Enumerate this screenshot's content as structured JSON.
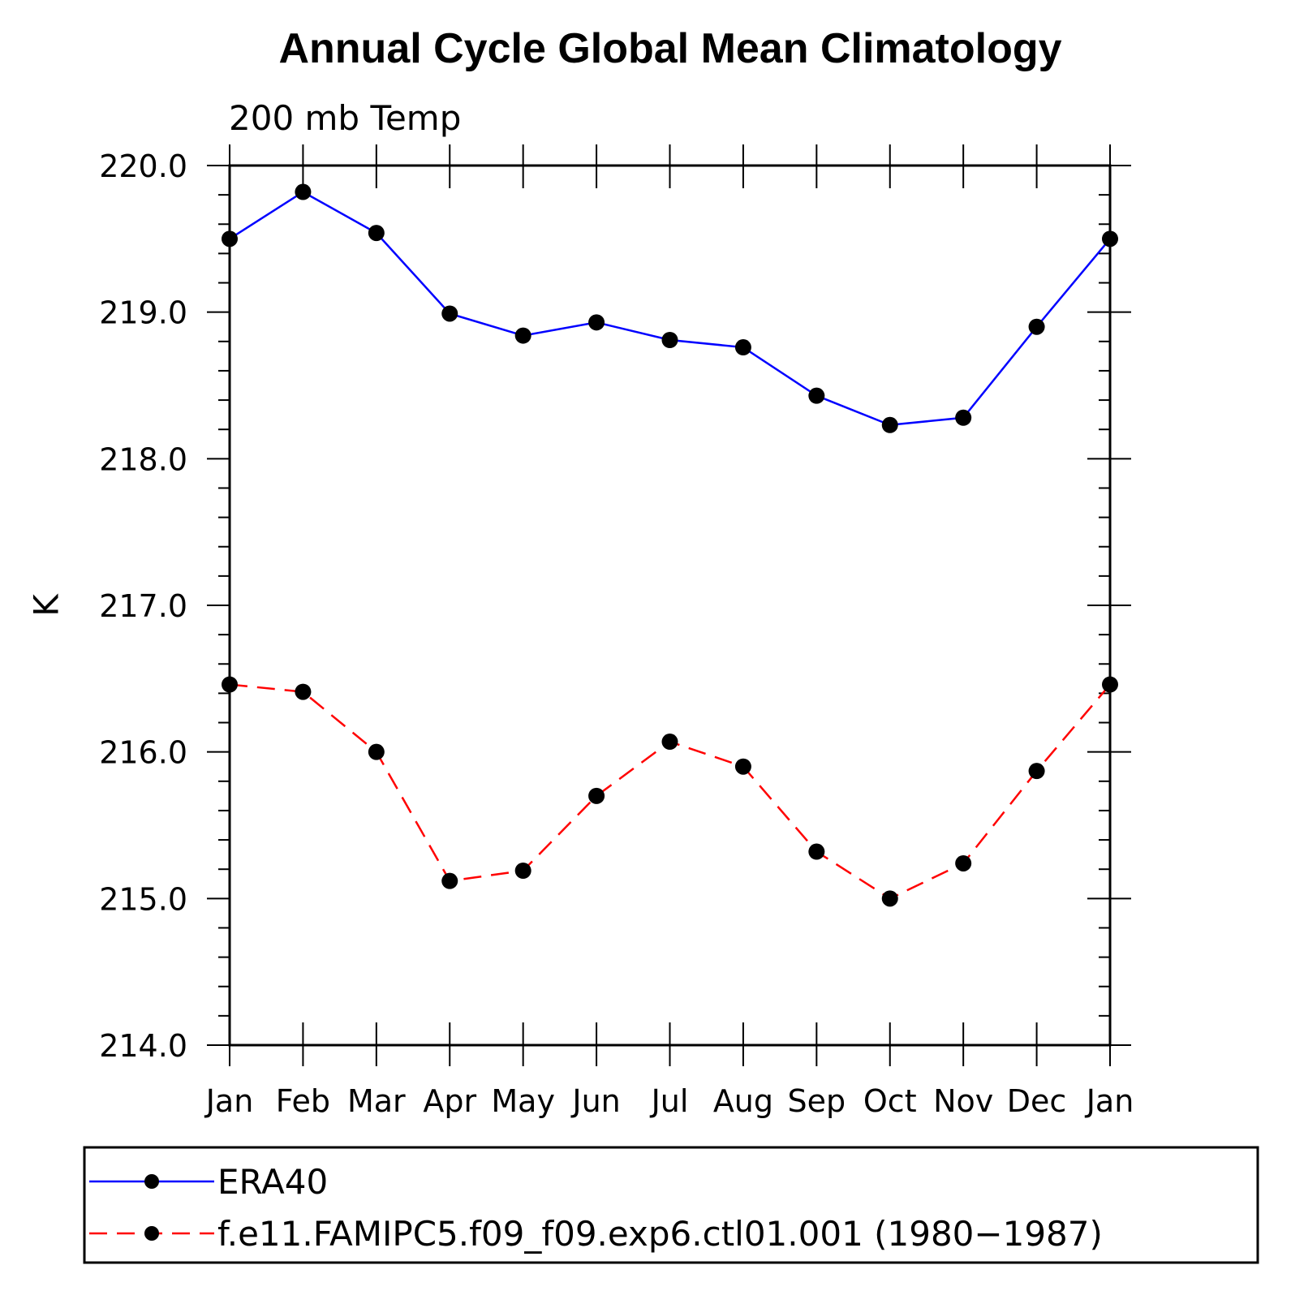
{
  "chart_data": {
    "type": "line",
    "title": "Annual Cycle Global Mean Climatology",
    "subtitle": "200 mb Temp",
    "xlabel": "",
    "ylabel": "K",
    "categories": [
      "Jan",
      "Feb",
      "Mar",
      "Apr",
      "May",
      "Jun",
      "Jul",
      "Aug",
      "Sep",
      "Oct",
      "Nov",
      "Dec",
      "Jan"
    ],
    "ylim": [
      214.0,
      220.0
    ],
    "yticks": [
      "214.0",
      "215.0",
      "216.0",
      "217.0",
      "218.0",
      "219.0",
      "220.0"
    ],
    "grid": false,
    "legend_position": "bottom",
    "series": [
      {
        "name": "ERA40",
        "color": "#0000ff",
        "dash": "solid",
        "values": [
          219.5,
          219.82,
          219.54,
          218.99,
          218.84,
          218.93,
          218.81,
          218.76,
          218.43,
          218.23,
          218.28,
          218.9,
          219.5
        ]
      },
      {
        "name": "f.e11.FAMIPC5.f09_f09.exp6.ctl01.001 (1980−1987)",
        "color": "#ff0000",
        "dash": "dashed",
        "values": [
          216.46,
          216.41,
          216.0,
          215.12,
          215.19,
          215.7,
          216.07,
          215.9,
          215.32,
          215.0,
          215.24,
          215.87,
          216.46
        ]
      }
    ]
  }
}
